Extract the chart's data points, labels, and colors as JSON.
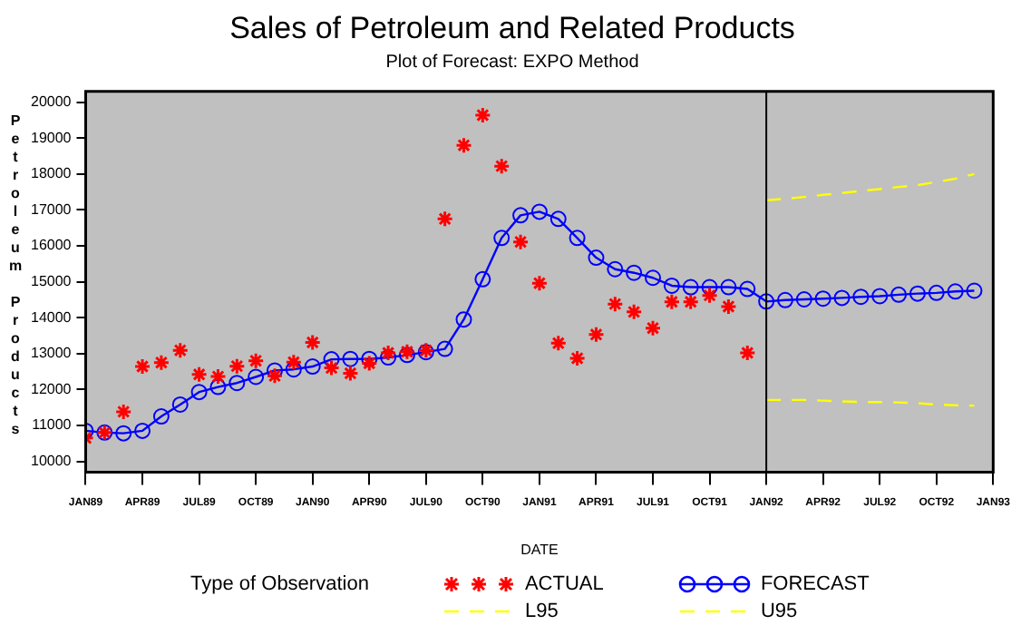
{
  "chart_data": {
    "type": "line",
    "title": "Sales of Petroleum and Related Products",
    "subtitle": "Plot of Forecast: EXPO Method",
    "xlabel": "DATE",
    "ylabel": "Petroleum Products",
    "legend_title": "Type of Observation",
    "legend": "bottom",
    "grid": false,
    "xlim": [
      "1989-01",
      "1993-01"
    ],
    "xticks": [
      {
        "value": "1989-01",
        "label": "JAN89"
      },
      {
        "value": "1989-04",
        "label": "APR89"
      },
      {
        "value": "1989-07",
        "label": "JUL89"
      },
      {
        "value": "1989-10",
        "label": "OCT89"
      },
      {
        "value": "1990-01",
        "label": "JAN90"
      },
      {
        "value": "1990-04",
        "label": "APR90"
      },
      {
        "value": "1990-07",
        "label": "JUL90"
      },
      {
        "value": "1990-10",
        "label": "OCT90"
      },
      {
        "value": "1991-01",
        "label": "JAN91"
      },
      {
        "value": "1991-04",
        "label": "APR91"
      },
      {
        "value": "1991-07",
        "label": "JUL91"
      },
      {
        "value": "1991-10",
        "label": "OCT91"
      },
      {
        "value": "1992-01",
        "label": "JAN92"
      },
      {
        "value": "1992-04",
        "label": "APR92"
      },
      {
        "value": "1992-07",
        "label": "JUL92"
      },
      {
        "value": "1992-10",
        "label": "OCT92"
      },
      {
        "value": "1993-01",
        "label": "JAN93"
      }
    ],
    "ylim": [
      9700,
      20300
    ],
    "yticks": [
      10000,
      11000,
      12000,
      13000,
      14000,
      15000,
      16000,
      17000,
      18000,
      19000,
      20000
    ],
    "ref_lines": [
      {
        "axis": "x",
        "value": "1992-01",
        "color": "#000000"
      }
    ],
    "series": [
      {
        "name": "ACTUAL",
        "type": "scatter",
        "marker": "cross",
        "color": "#ff0000",
        "x": [
          "1989-01",
          "1989-02",
          "1989-03",
          "1989-04",
          "1989-05",
          "1989-06",
          "1989-07",
          "1989-08",
          "1989-09",
          "1989-10",
          "1989-11",
          "1989-12",
          "1990-01",
          "1990-02",
          "1990-03",
          "1990-04",
          "1990-05",
          "1990-06",
          "1990-07",
          "1990-08",
          "1990-09",
          "1990-10",
          "1990-11",
          "1990-12",
          "1991-01",
          "1991-02",
          "1991-03",
          "1991-04",
          "1991-05",
          "1991-06",
          "1991-07",
          "1991-08",
          "1991-09",
          "1991-10",
          "1991-11",
          "1991-12"
        ],
        "values": [
          10650,
          10800,
          11380,
          12640,
          12750,
          13090,
          12420,
          12360,
          12650,
          12800,
          12380,
          12760,
          13310,
          12600,
          12450,
          12730,
          13020,
          13050,
          13090,
          16750,
          18800,
          19640,
          18220,
          16110,
          14960,
          13290,
          12870,
          13530,
          14380,
          14160,
          13710,
          14440,
          14440,
          14620,
          14310,
          13020
        ]
      },
      {
        "name": "FORECAST",
        "marker": "circle",
        "line_style": "solid",
        "color": "#0000ff",
        "x": [
          "1989-01",
          "1989-02",
          "1989-03",
          "1989-04",
          "1989-05",
          "1989-06",
          "1989-07",
          "1989-08",
          "1989-09",
          "1989-10",
          "1989-11",
          "1989-12",
          "1990-01",
          "1990-02",
          "1990-03",
          "1990-04",
          "1990-05",
          "1990-06",
          "1990-07",
          "1990-08",
          "1990-09",
          "1990-10",
          "1990-11",
          "1990-12",
          "1991-01",
          "1991-02",
          "1991-03",
          "1991-04",
          "1991-05",
          "1991-06",
          "1991-07",
          "1991-08",
          "1991-09",
          "1991-10",
          "1991-11",
          "1991-12",
          "1992-01",
          "1992-02",
          "1992-03",
          "1992-04",
          "1992-05",
          "1992-06",
          "1992-07",
          "1992-08",
          "1992-09",
          "1992-10",
          "1992-11",
          "1992-12"
        ],
        "values": [
          10850,
          10800,
          10780,
          10850,
          11250,
          11580,
          11930,
          12070,
          12180,
          12350,
          12530,
          12560,
          12640,
          12840,
          12850,
          12850,
          12890,
          12960,
          13040,
          13130,
          13950,
          15070,
          16220,
          16850,
          16950,
          16750,
          16220,
          15670,
          15350,
          15250,
          15110,
          14890,
          14850,
          14850,
          14850,
          14800,
          14450,
          14490,
          14510,
          14530,
          14550,
          14580,
          14600,
          14640,
          14670,
          14690,
          14730,
          14750
        ]
      },
      {
        "name": "L95",
        "marker": "none",
        "line_style": "dashed",
        "color": "#ffff00",
        "x": [
          "1992-01",
          "1992-02",
          "1992-03",
          "1992-04",
          "1992-05",
          "1992-06",
          "1992-07",
          "1992-08",
          "1992-09",
          "1992-10",
          "1992-11",
          "1992-12"
        ],
        "values": [
          11710,
          11710,
          11710,
          11690,
          11670,
          11650,
          11650,
          11640,
          11620,
          11580,
          11560,
          11550
        ]
      },
      {
        "name": "U95",
        "marker": "none",
        "line_style": "dashed",
        "color": "#ffff00",
        "x": [
          "1992-01",
          "1992-02",
          "1992-03",
          "1992-04",
          "1992-05",
          "1992-06",
          "1992-07",
          "1992-08",
          "1992-09",
          "1992-10",
          "1992-11",
          "1992-12"
        ],
        "values": [
          17270,
          17310,
          17360,
          17420,
          17470,
          17530,
          17580,
          17640,
          17690,
          17780,
          17870,
          18000
        ]
      }
    ]
  }
}
